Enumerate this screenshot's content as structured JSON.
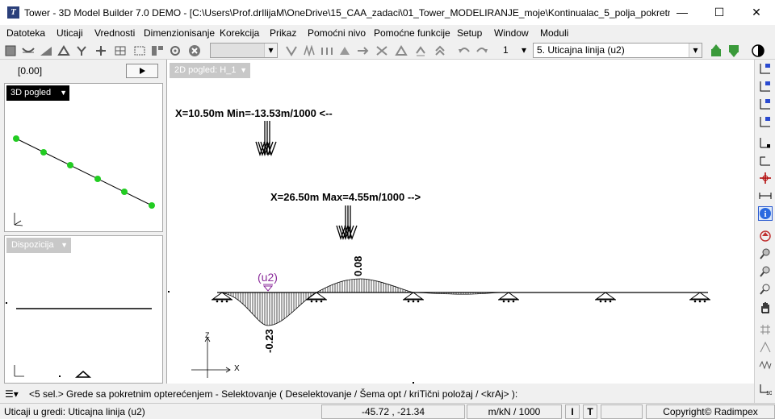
{
  "window": {
    "title": "Tower - 3D Model Builder 7.0 DEMO - [C:\\Users\\Prof.drIlijaM\\OneDrive\\15_CAA_zadaci\\01_Tower_MODELIRANJE_moje\\Kontinualac_5_polja_pokretn...",
    "minimize": "—",
    "maximize": "☐",
    "close": "✕"
  },
  "menu": {
    "items": [
      "Datoteka",
      "Uticaji",
      "Vrednosti",
      "Dimenzionisanje",
      "Korekcija",
      "Prikaz",
      "Pomoćni nivo",
      "Pomoćne funkcije",
      "Setup",
      "Window",
      "Moduli"
    ]
  },
  "toolbar": {
    "level_value": "1",
    "loadcase_value": "5. Uticajna linija (u2)",
    "icons": [
      "select-icon",
      "beam-load-icon",
      "hatch-icon",
      "support-icon",
      "pin-icon",
      "node-icon",
      "grid-icon",
      "rotate-icon",
      "delete-icon",
      "result-icon-1",
      "result-icon-2",
      "result-icon-3",
      "result-icon-4",
      "result-icon-5",
      "scissors-icon",
      "result-icon-6",
      "result-icon-7",
      "result-icon-8",
      "undo-icon",
      "redo-icon"
    ]
  },
  "left_panel": {
    "coord_value": "[0.00]",
    "view3d_label": "3D pogled",
    "disposition_label": "Dispozicija"
  },
  "main_view": {
    "view_label": "2D pogled: H_1",
    "min_label": "X=10.50m Min=-13.53m/1000 <--",
    "max_label": "X=26.50m Max=4.55m/1000 -->",
    "min_value_label": "-0.23",
    "max_value_label": "0.08",
    "marker_label": "(u2)",
    "axis_z": "Z",
    "axis_x": "X"
  },
  "command_line": {
    "text": "<5 sel.> Grede sa pokretnim opterećenjem - Selektovanje ( Deselektovanje / Šema opt / kriTični položaj / <krAj> ):"
  },
  "status_bar": {
    "info": "Uticaji u gredi: Uticajna linija (u2)",
    "coords": "-45.72 , -21.34",
    "units": "m/kN / 1000",
    "italic_btn": "I",
    "bold_btn": "T",
    "copyright": "Copyright© Radimpex"
  }
}
